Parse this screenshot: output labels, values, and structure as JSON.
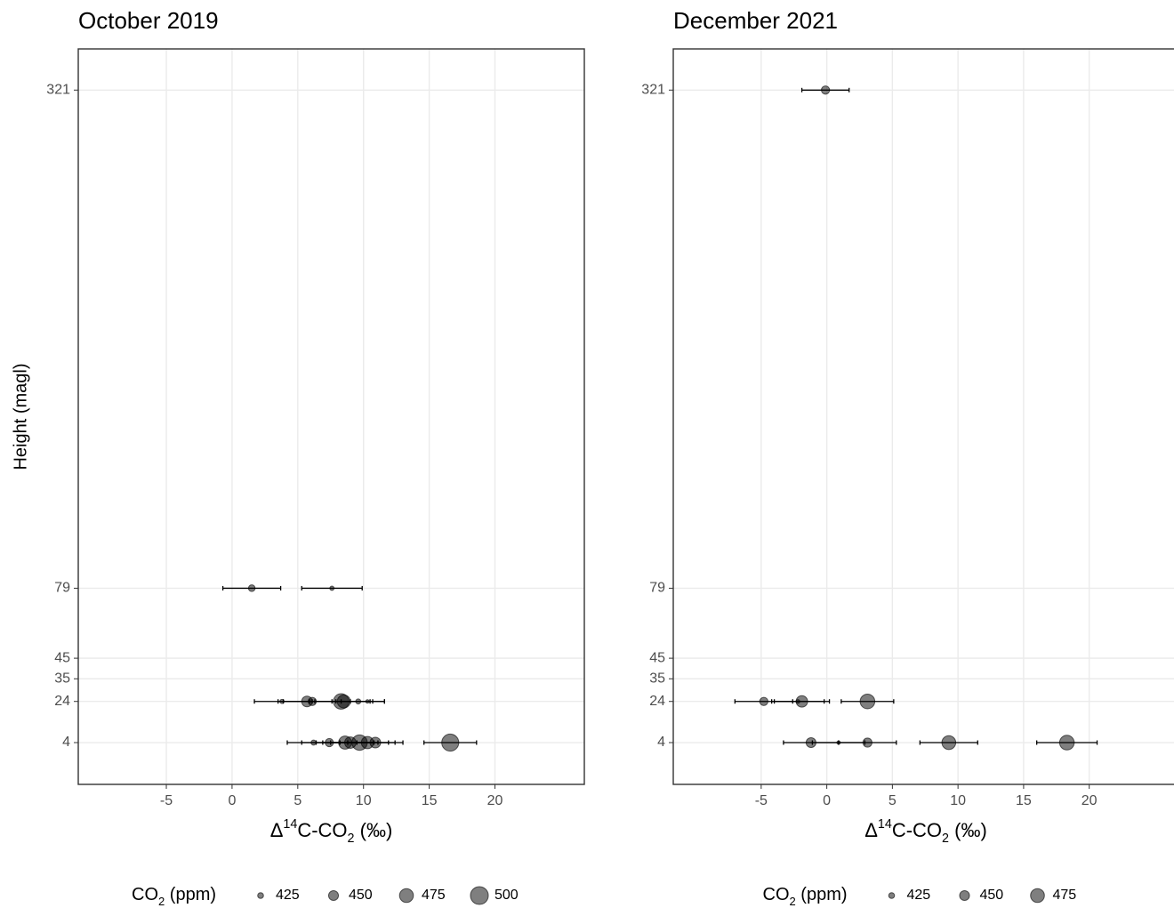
{
  "chart_data": [
    {
      "type": "scatter",
      "title": "October 2019",
      "x": [
        1.5,
        7.6,
        3.8,
        5.7,
        6.1,
        8.3,
        8.5,
        9.6,
        10.3,
        6.2,
        7.4,
        8.6,
        9.0,
        9.7,
        10.3,
        10.9,
        16.6
      ],
      "y": [
        79,
        79,
        24,
        24,
        24,
        24,
        24,
        24,
        24,
        4,
        4,
        4,
        4,
        4,
        4,
        4,
        4
      ],
      "size": [
        430,
        415,
        415,
        455,
        440,
        485,
        470,
        420,
        410,
        420,
        440,
        470,
        460,
        485,
        465,
        455,
        495
      ],
      "xerr": [
        2.2,
        2.3,
        2.1,
        2.2,
        2.2,
        2.2,
        2.2,
        2.0,
        1.3,
        2.0,
        2.1,
        2.2,
        2.1,
        2.2,
        2.1,
        2.1,
        2.0
      ],
      "color": "#000000",
      "alpha": 0.5,
      "xlim": [
        -11.7,
        26.8
      ],
      "xticks": [
        -5,
        0,
        5,
        10,
        15,
        20
      ],
      "ylim": [
        -16.3,
        341
      ],
      "yticks": [
        4,
        24,
        35,
        45,
        79,
        321
      ],
      "y_label": "Height (magl)",
      "x_label": [
        {
          "text": "Δ"
        },
        {
          "text": "14",
          "shift": "sup"
        },
        {
          "text": "C-CO"
        },
        {
          "text": "2",
          "shift": "sub"
        },
        {
          "text": " (‰)"
        }
      ],
      "legend_title": [
        {
          "text": "CO"
        },
        {
          "text": "2",
          "shift": "sub"
        },
        {
          "text": " (ppm)"
        }
      ],
      "legend_sizes": [
        425,
        450,
        475,
        500
      ],
      "size_lim": [
        405,
        505
      ],
      "grid": true
    },
    {
      "type": "scatter",
      "title": "December 2021",
      "x": [
        -0.1,
        -4.8,
        -2.2,
        -1.9,
        3.1,
        -1.2,
        0.9,
        3.1,
        9.3,
        18.3
      ],
      "y": [
        321,
        24,
        24,
        24,
        24,
        4,
        4,
        4,
        4,
        4
      ],
      "size": [
        440,
        440,
        412,
        460,
        480,
        450,
        410,
        445,
        475,
        480
      ],
      "xerr": [
        1.8,
        2.2,
        2.0,
        2.1,
        2.0,
        2.1,
        2.0,
        2.2,
        2.2,
        2.3
      ],
      "color": "#000000",
      "alpha": 0.5,
      "xlim": [
        -11.7,
        26.8
      ],
      "xticks": [
        -5,
        0,
        5,
        10,
        15,
        20
      ],
      "ylim": [
        -16.3,
        341
      ],
      "yticks": [
        4,
        24,
        35,
        45,
        79,
        321
      ],
      "x_label": [
        {
          "text": "Δ"
        },
        {
          "text": "14",
          "shift": "sup"
        },
        {
          "text": "C-CO"
        },
        {
          "text": "2",
          "shift": "sub"
        },
        {
          "text": " (‰)"
        }
      ],
      "legend_title": [
        {
          "text": "CO"
        },
        {
          "text": "2",
          "shift": "sub"
        },
        {
          "text": " (ppm)"
        }
      ],
      "legend_sizes": [
        425,
        450,
        475
      ],
      "size_lim": [
        405,
        505
      ],
      "grid": true
    }
  ]
}
